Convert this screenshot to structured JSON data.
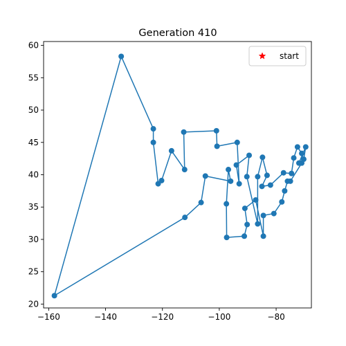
{
  "chart_data": {
    "type": "line",
    "title": "Generation 410",
    "xlabel": "",
    "ylabel": "",
    "xlim": [
      -161.8,
      -67.6
    ],
    "ylim": [
      19.4,
      60.6
    ],
    "xticks": [
      -160,
      -140,
      -120,
      -100,
      -80
    ],
    "xtick_labels": [
      "−160",
      "−140",
      "−120",
      "−100",
      "−80"
    ],
    "yticks": [
      20,
      25,
      30,
      35,
      40,
      45,
      50,
      55,
      60
    ],
    "ytick_labels": [
      "20",
      "25",
      "30",
      "35",
      "40",
      "45",
      "50",
      "55",
      "60"
    ],
    "grid": false,
    "legend": {
      "placement": "top-right",
      "entries": [
        {
          "label": "start",
          "marker": "star",
          "color": "#ff0000"
        }
      ]
    },
    "series": [
      {
        "color": "#1f77b4",
        "marker": "circle",
        "points": [
          [
            -158.0,
            21.3
          ],
          [
            -134.5,
            58.3
          ],
          [
            -123.2,
            47.1
          ],
          [
            -123.2,
            45.0
          ],
          [
            -121.5,
            38.6
          ],
          [
            -120.3,
            39.1
          ],
          [
            -116.8,
            43.7
          ],
          [
            -112.2,
            40.8
          ],
          [
            -112.5,
            46.6
          ],
          [
            -101.0,
            46.8
          ],
          [
            -100.8,
            44.4
          ],
          [
            -93.7,
            45.0
          ],
          [
            -93.0,
            38.6
          ],
          [
            -94.0,
            41.5
          ],
          [
            -89.5,
            43.0
          ],
          [
            -90.3,
            39.7
          ],
          [
            -86.5,
            32.4
          ],
          [
            -86.5,
            39.7
          ],
          [
            -84.8,
            42.7
          ],
          [
            -83.2,
            39.9
          ],
          [
            -85.0,
            38.2
          ],
          [
            -82.0,
            38.4
          ],
          [
            -77.4,
            40.3
          ],
          [
            -74.6,
            40.2
          ],
          [
            -73.8,
            42.6
          ],
          [
            -72.5,
            44.3
          ],
          [
            -71.0,
            43.3
          ],
          [
            -70.3,
            42.4
          ],
          [
            -69.6,
            44.3
          ],
          [
            -72.0,
            41.8
          ],
          [
            -71.0,
            41.8
          ],
          [
            -75.0,
            39.0
          ],
          [
            -76.0,
            39.0
          ],
          [
            -77.0,
            37.5
          ],
          [
            -78.0,
            35.8
          ],
          [
            -80.8,
            34.0
          ],
          [
            -84.5,
            33.7
          ],
          [
            -84.5,
            30.5
          ],
          [
            -87.2,
            36.1
          ],
          [
            -91.0,
            34.8
          ],
          [
            -90.2,
            32.3
          ],
          [
            -91.2,
            30.5
          ],
          [
            -97.4,
            30.3
          ],
          [
            -97.5,
            35.5
          ],
          [
            -96.8,
            40.8
          ],
          [
            -96.0,
            39.0
          ],
          [
            -104.9,
            39.8
          ],
          [
            -106.4,
            35.7
          ],
          [
            -112.1,
            33.4
          ],
          [
            -158.0,
            21.3
          ]
        ]
      }
    ]
  }
}
